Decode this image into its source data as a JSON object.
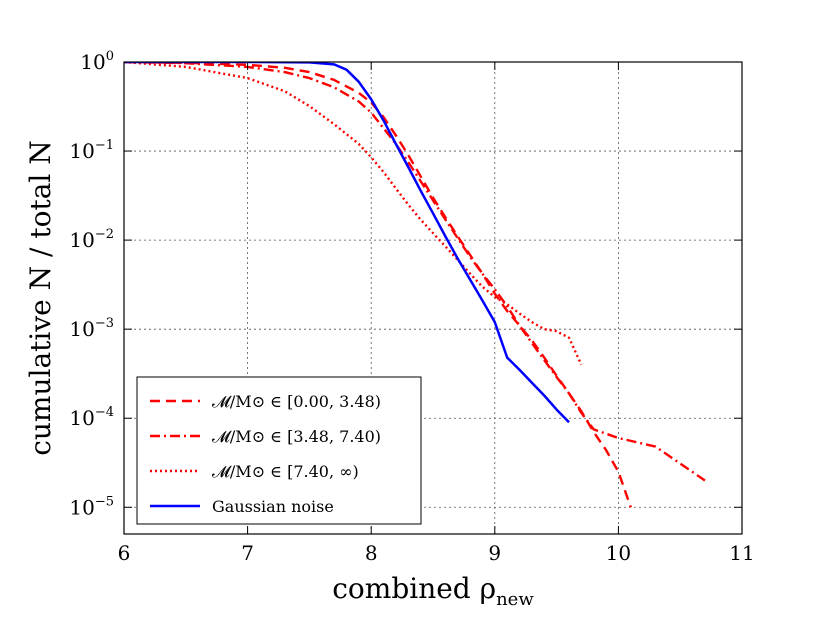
{
  "chart_data": {
    "type": "line",
    "title": "",
    "xlabel": "combined ρ",
    "xlabel_sub": "new",
    "ylabel": "cumulative N / total N",
    "y_scale": "log",
    "xlim": [
      6,
      11
    ],
    "ylim_log10": [
      -5.3,
      0
    ],
    "x_ticks": [
      {
        "value": 6,
        "label": "6"
      },
      {
        "value": 7,
        "label": "7"
      },
      {
        "value": 8,
        "label": "8"
      },
      {
        "value": 9,
        "label": "9"
      },
      {
        "value": 10,
        "label": "10"
      },
      {
        "value": 11,
        "label": "11"
      }
    ],
    "y_ticks": [
      {
        "value": 1,
        "base": "10",
        "exp": "0"
      },
      {
        "value": 0.1,
        "base": "10",
        "exp": "−1"
      },
      {
        "value": 0.01,
        "base": "10",
        "exp": "−2"
      },
      {
        "value": 0.001,
        "base": "10",
        "exp": "−3"
      },
      {
        "value": 0.0001,
        "base": "10",
        "exp": "−4"
      },
      {
        "value": 1e-05,
        "base": "10",
        "exp": "−5"
      }
    ],
    "grid": true,
    "legend_position": "lower-left",
    "series": [
      {
        "name": "𝓜/M⊙ ∈ [0.00, 3.48)",
        "color": "#ff0000",
        "style": "dashed",
        "x": [
          6.0,
          6.5,
          7.0,
          7.3,
          7.5,
          7.7,
          7.9,
          8.0,
          8.1,
          8.2,
          8.3,
          8.4,
          8.5,
          8.6,
          8.7,
          8.8,
          8.9,
          9.0,
          9.1,
          9.2,
          9.3,
          9.4,
          9.5,
          9.6,
          9.7,
          9.8,
          9.9,
          10.0,
          10.1
        ],
        "y": [
          1.0,
          0.98,
          0.93,
          0.86,
          0.77,
          0.63,
          0.45,
          0.35,
          0.24,
          0.15,
          0.09,
          0.052,
          0.03,
          0.018,
          0.011,
          0.0068,
          0.0042,
          0.0025,
          0.0016,
          0.0011,
          0.00075,
          0.00048,
          0.0003,
          0.00019,
          0.00012,
          7e-05,
          4.4e-05,
          2.5e-05,
          1e-05
        ]
      },
      {
        "name": "𝓜/M⊙ ∈ [3.48, 7.40)",
        "color": "#ff0000",
        "style": "dashdot",
        "x": [
          6.0,
          6.5,
          7.0,
          7.3,
          7.5,
          7.7,
          7.9,
          8.0,
          8.1,
          8.2,
          8.3,
          8.4,
          8.5,
          8.6,
          8.7,
          8.8,
          8.9,
          9.0,
          9.1,
          9.2,
          9.3,
          9.4,
          9.5,
          9.6,
          9.7,
          9.8,
          10.0,
          10.3,
          10.7
        ],
        "y": [
          1.0,
          0.97,
          0.88,
          0.77,
          0.66,
          0.52,
          0.36,
          0.27,
          0.18,
          0.12,
          0.075,
          0.046,
          0.028,
          0.017,
          0.0105,
          0.0065,
          0.0042,
          0.0028,
          0.0018,
          0.0011,
          0.0007,
          0.00045,
          0.00029,
          0.00019,
          0.000115,
          7.5e-05,
          6e-05,
          4.8e-05,
          2e-05
        ]
      },
      {
        "name": "𝓜/M⊙ ∈ [7.40, ∞)",
        "color": "#ff0000",
        "style": "dotted",
        "x": [
          6.0,
          6.5,
          7.0,
          7.3,
          7.5,
          7.7,
          7.9,
          8.0,
          8.1,
          8.2,
          8.3,
          8.4,
          8.5,
          8.6,
          8.7,
          8.8,
          8.9,
          9.0,
          9.1,
          9.2,
          9.3,
          9.4,
          9.5,
          9.6,
          9.7
        ],
        "y": [
          1.0,
          0.88,
          0.66,
          0.47,
          0.32,
          0.2,
          0.12,
          0.085,
          0.058,
          0.038,
          0.025,
          0.017,
          0.012,
          0.0085,
          0.006,
          0.0042,
          0.003,
          0.0023,
          0.0019,
          0.0015,
          0.0012,
          0.001,
          0.00095,
          0.0008,
          0.0004
        ]
      },
      {
        "name": "Gaussian noise",
        "color": "#0000ff",
        "style": "solid",
        "x": [
          6.0,
          7.0,
          7.5,
          7.7,
          7.8,
          7.9,
          8.0,
          8.1,
          8.2,
          8.3,
          8.4,
          8.5,
          8.6,
          8.7,
          8.8,
          8.9,
          9.0,
          9.1,
          9.2,
          9.3,
          9.4,
          9.5,
          9.6
        ],
        "y": [
          1.0,
          1.0,
          0.99,
          0.94,
          0.82,
          0.6,
          0.38,
          0.22,
          0.12,
          0.066,
          0.036,
          0.02,
          0.011,
          0.0062,
          0.0036,
          0.0021,
          0.0012,
          0.00048,
          0.00035,
          0.00025,
          0.00018,
          0.000125,
          9e-05
        ]
      }
    ]
  }
}
